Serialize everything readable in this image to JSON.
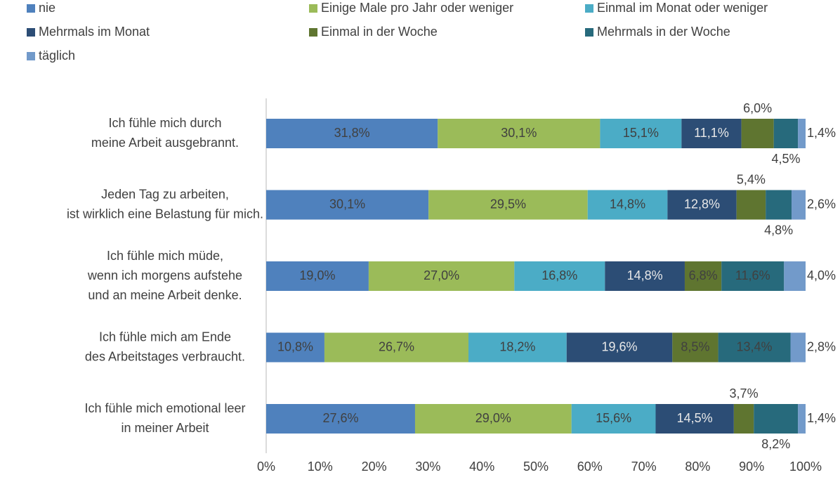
{
  "chart_data": {
    "type": "stacked-barh",
    "categories": [
      [
        "Ich fühle mich durch",
        "meine Arbeit ausgebrannt."
      ],
      [
        "Jeden Tag zu arbeiten,",
        "ist wirklich eine Belastung für mich."
      ],
      [
        "Ich fühle mich müde,",
        "wenn ich morgens aufstehe",
        "und an meine Arbeit denke."
      ],
      [
        "Ich fühle mich am Ende",
        "des Arbeitstages verbraucht."
      ],
      [
        "Ich fühle mich emotional leer",
        "in meiner Arbeit"
      ]
    ],
    "series": [
      {
        "name": "nie",
        "color": "#4f81bd",
        "values": [
          31.8,
          30.1,
          19.0,
          10.8,
          27.6
        ],
        "value_labels": [
          "31,8%",
          "30,1%",
          "19,0%",
          "10,8%",
          "27,6%"
        ]
      },
      {
        "name": "Einige Male pro Jahr oder weniger",
        "color": "#9bbb59",
        "values": [
          30.1,
          29.5,
          27.0,
          26.7,
          29.0
        ],
        "value_labels": [
          "30,1%",
          "29,5%",
          "27,0%",
          "26,7%",
          "29,0%"
        ]
      },
      {
        "name": "Einmal im Monat oder weniger",
        "color": "#4bacc6",
        "values": [
          15.1,
          14.8,
          16.8,
          18.2,
          15.6
        ],
        "value_labels": [
          "15,1%",
          "14,8%",
          "16,8%",
          "18,2%",
          "15,6%"
        ]
      },
      {
        "name": "Mehrmals im Monat",
        "color": "#2c4d75",
        "values": [
          11.1,
          12.8,
          14.8,
          19.6,
          14.5
        ],
        "value_labels": [
          "11,1%",
          "12,8%",
          "14,8%",
          "19,6%",
          "14,5%"
        ]
      },
      {
        "name": "Einmal in der Woche",
        "color": "#5f7530",
        "values": [
          6.0,
          5.4,
          6.8,
          8.5,
          3.7
        ],
        "value_labels": [
          "6,0%",
          "5,4%",
          "6,8%",
          "8,5%",
          "3,7%"
        ]
      },
      {
        "name": "Mehrmals in der Woche",
        "color": "#276a7c",
        "values": [
          4.5,
          4.8,
          11.6,
          13.4,
          8.2
        ],
        "value_labels": [
          "4,5%",
          "4,8%",
          "11,6%",
          "13,4%",
          "8,2%"
        ]
      },
      {
        "name": "täglich",
        "color": "#729aca",
        "values": [
          1.4,
          2.6,
          4.0,
          2.8,
          1.4
        ],
        "value_labels": [
          "1,4%",
          "2,6%",
          "4,0%",
          "2,8%",
          "1,4%"
        ]
      }
    ],
    "xlim": [
      0,
      100
    ],
    "xticks": [
      {
        "value": 0,
        "label": "0%"
      },
      {
        "value": 10,
        "label": "10%"
      },
      {
        "value": 20,
        "label": "20%"
      },
      {
        "value": 30,
        "label": "30%"
      },
      {
        "value": 40,
        "label": "40%"
      },
      {
        "value": 50,
        "label": "50%"
      },
      {
        "value": 60,
        "label": "60%"
      },
      {
        "value": 70,
        "label": "70%"
      },
      {
        "value": 80,
        "label": "80%"
      },
      {
        "value": 90,
        "label": "90%"
      },
      {
        "value": 100,
        "label": "100%"
      }
    ],
    "legend": "top"
  }
}
